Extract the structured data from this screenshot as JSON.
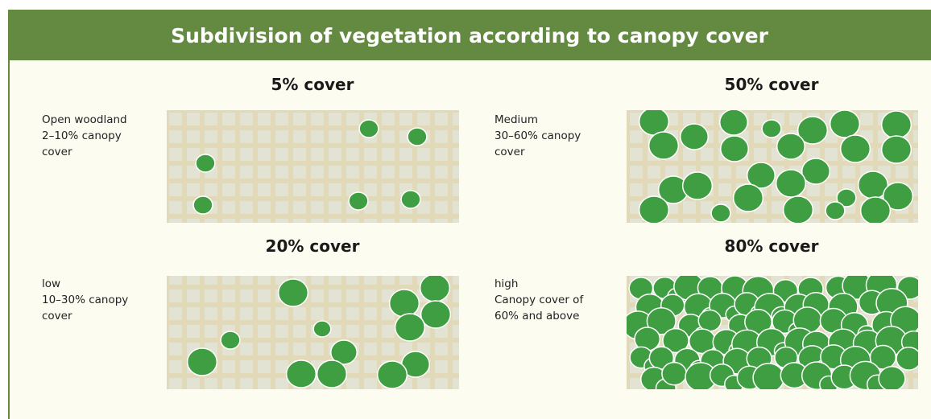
{
  "header": {
    "title": "Subdivision of vegetation according to  canopy cover"
  },
  "panels": [
    {
      "heading": "5% cover",
      "description": [
        "Open woodland",
        "2–10% canopy",
        "cover"
      ]
    },
    {
      "heading": "50% cover",
      "description": [
        "Medium",
        "30–60% canopy",
        "cover"
      ]
    },
    {
      "heading": "20% cover",
      "description": [
        "low",
        "10–30% canopy",
        "cover"
      ]
    },
    {
      "heading": "80% cover",
      "description": [
        "high",
        "Canopy cover of",
        "60% and above"
      ]
    }
  ]
}
